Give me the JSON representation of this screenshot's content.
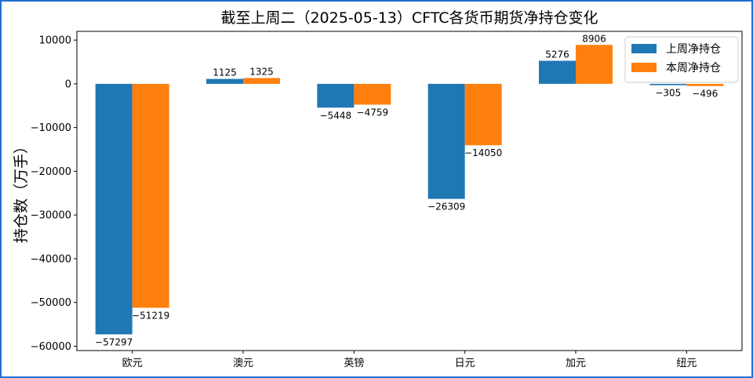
{
  "chart_data": {
    "type": "bar",
    "title": "截至上周二（2025-05-13）CFTC各货币期货净持仓变化",
    "xlabel": "",
    "ylabel": "持仓数（万手）",
    "categories": [
      "欧元",
      "澳元",
      "英镑",
      "日元",
      "加元",
      "纽元"
    ],
    "series": [
      {
        "name": "上周净持仓",
        "color": "#1f77b4",
        "values": [
          -57297,
          1125,
          -5448,
          -26309,
          5276,
          -305
        ]
      },
      {
        "name": "本周净持仓",
        "color": "#ff7f0e",
        "values": [
          -51219,
          1325,
          -4759,
          -14050,
          8906,
          -496
        ]
      }
    ],
    "ylim": [
      -61000,
      12000
    ],
    "yticks": [
      10000,
      0,
      -10000,
      -20000,
      -30000,
      -40000,
      -50000,
      -60000
    ],
    "legend": "top-right",
    "grid": false
  }
}
